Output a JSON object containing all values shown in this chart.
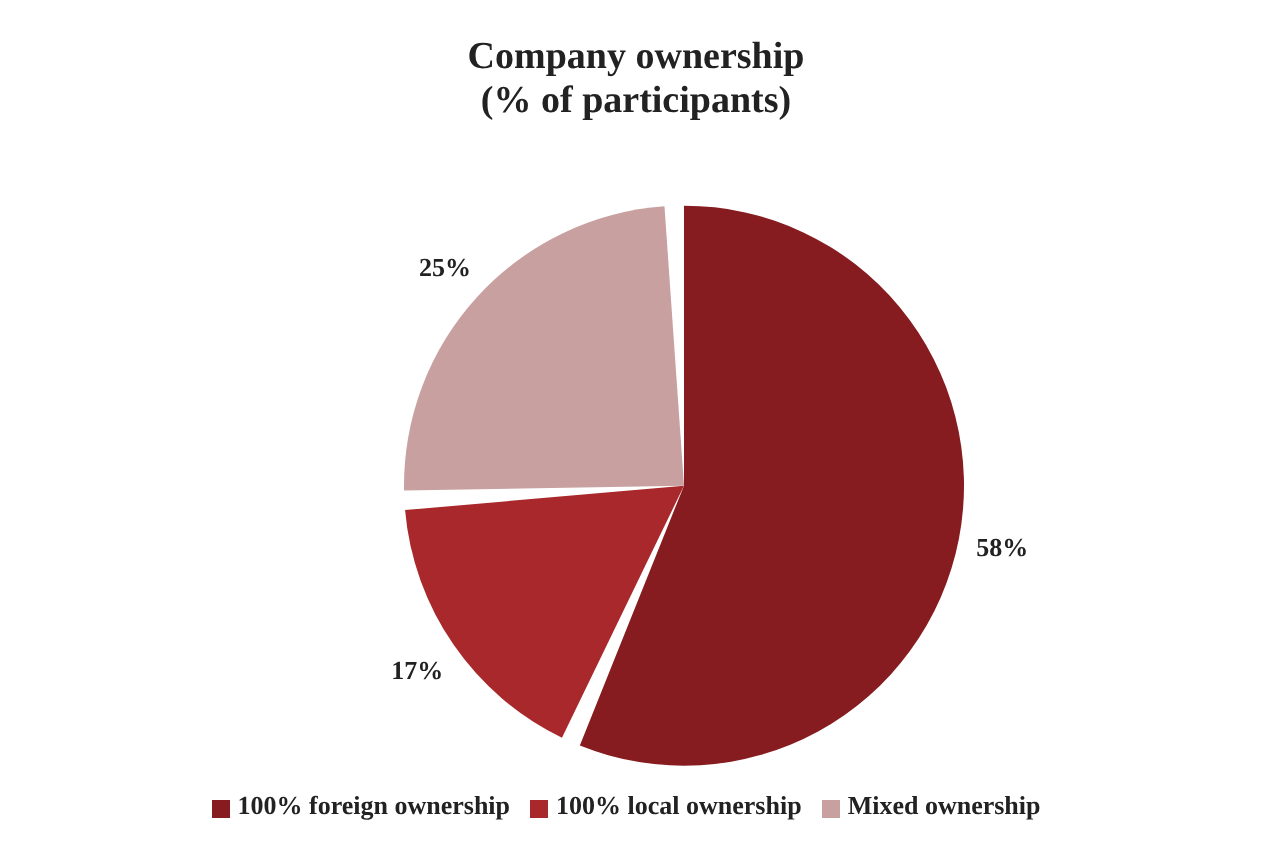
{
  "chart_data": {
    "type": "pie",
    "title": "Company ownership\n(% of participants)",
    "categories": [
      "100% foreign ownership",
      "100% local ownership",
      "Mixed ownership"
    ],
    "values": [
      58,
      17,
      25
    ],
    "colors": [
      "#861c1f",
      "#a8282b",
      "#c9a0a0"
    ],
    "value_labels": [
      "58%",
      "17%",
      "25%"
    ],
    "legend": "bottom"
  }
}
